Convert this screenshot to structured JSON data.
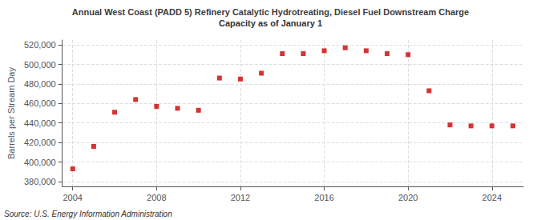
{
  "chart_data": {
    "type": "scatter",
    "title": "Annual West Coast (PADD 5) Refinery Catalytic Hydrotreating, Diesel Fuel Downstream Charge",
    "subtitle": "Capacity as of January 1",
    "ylabel": "Barrels per Stream Day",
    "annotations": [
      "Source: U.S. Energy Information Administration"
    ],
    "x": [
      2004,
      2005,
      2006,
      2007,
      2008,
      2009,
      2010,
      2011,
      2012,
      2013,
      2014,
      2015,
      2016,
      2017,
      2018,
      2019,
      2020,
      2021,
      2022,
      2023,
      2024,
      2025
    ],
    "values": [
      393000,
      416000,
      451000,
      464000,
      457000,
      455000,
      453000,
      486000,
      485000,
      491000,
      511000,
      511000,
      514000,
      517000,
      514000,
      511000,
      510000,
      473000,
      438000,
      437000,
      437000,
      437000
    ],
    "color": "#cc0000",
    "marker": "square",
    "xlim": [
      2003.5,
      2025.5
    ],
    "xticks": [
      2004,
      2008,
      2012,
      2016,
      2020,
      2024
    ],
    "ylim": [
      375000,
      525000
    ],
    "yticks": [
      {
        "value": 380000,
        "label": "380,000"
      },
      {
        "value": 400000,
        "label": "400,000"
      },
      {
        "value": 420000,
        "label": "420,000"
      },
      {
        "value": 440000,
        "label": "440,000"
      },
      {
        "value": 460000,
        "label": "460,000"
      },
      {
        "value": 480000,
        "label": "480,000"
      },
      {
        "value": 500000,
        "label": "500,000"
      },
      {
        "value": 520000,
        "label": "520,000"
      }
    ],
    "grid": true
  }
}
